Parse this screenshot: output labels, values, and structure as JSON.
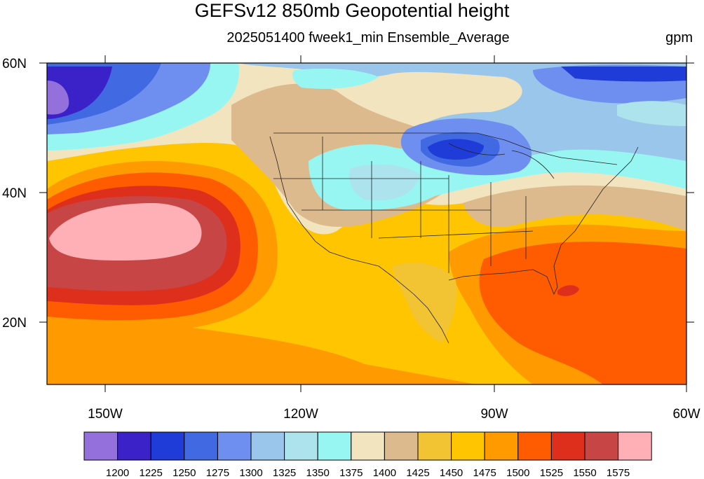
{
  "title": "GEFSv12 850mb Geopotential height",
  "subtitle": "2025051400 fweek1_min Ensemble_Average",
  "units": "gpm",
  "map": {
    "lon_labels": [
      "150W",
      "120W",
      "90W",
      "60W"
    ],
    "lat_labels": [
      "60N",
      "40N",
      "20N"
    ],
    "lon_range": [
      -160,
      -60
    ],
    "lat_range": [
      10,
      60
    ]
  },
  "colorbar": {
    "colors": [
      "#9370db",
      "#3a22c8",
      "#1f3bd8",
      "#4169e1",
      "#6e8ef0",
      "#99c6ea",
      "#ace3ec",
      "#98f6f2",
      "#f3e4c0",
      "#dcba8e",
      "#f2c332",
      "#ffc500",
      "#ff9a00",
      "#ff5b00",
      "#dd2f1c",
      "#c84545",
      "#ffb0b6"
    ],
    "labels": [
      "1200",
      "1225",
      "1250",
      "1275",
      "1300",
      "1325",
      "1350",
      "1375",
      "1400",
      "1425",
      "1450",
      "1475",
      "1500",
      "1525",
      "1550",
      "1575"
    ]
  }
}
